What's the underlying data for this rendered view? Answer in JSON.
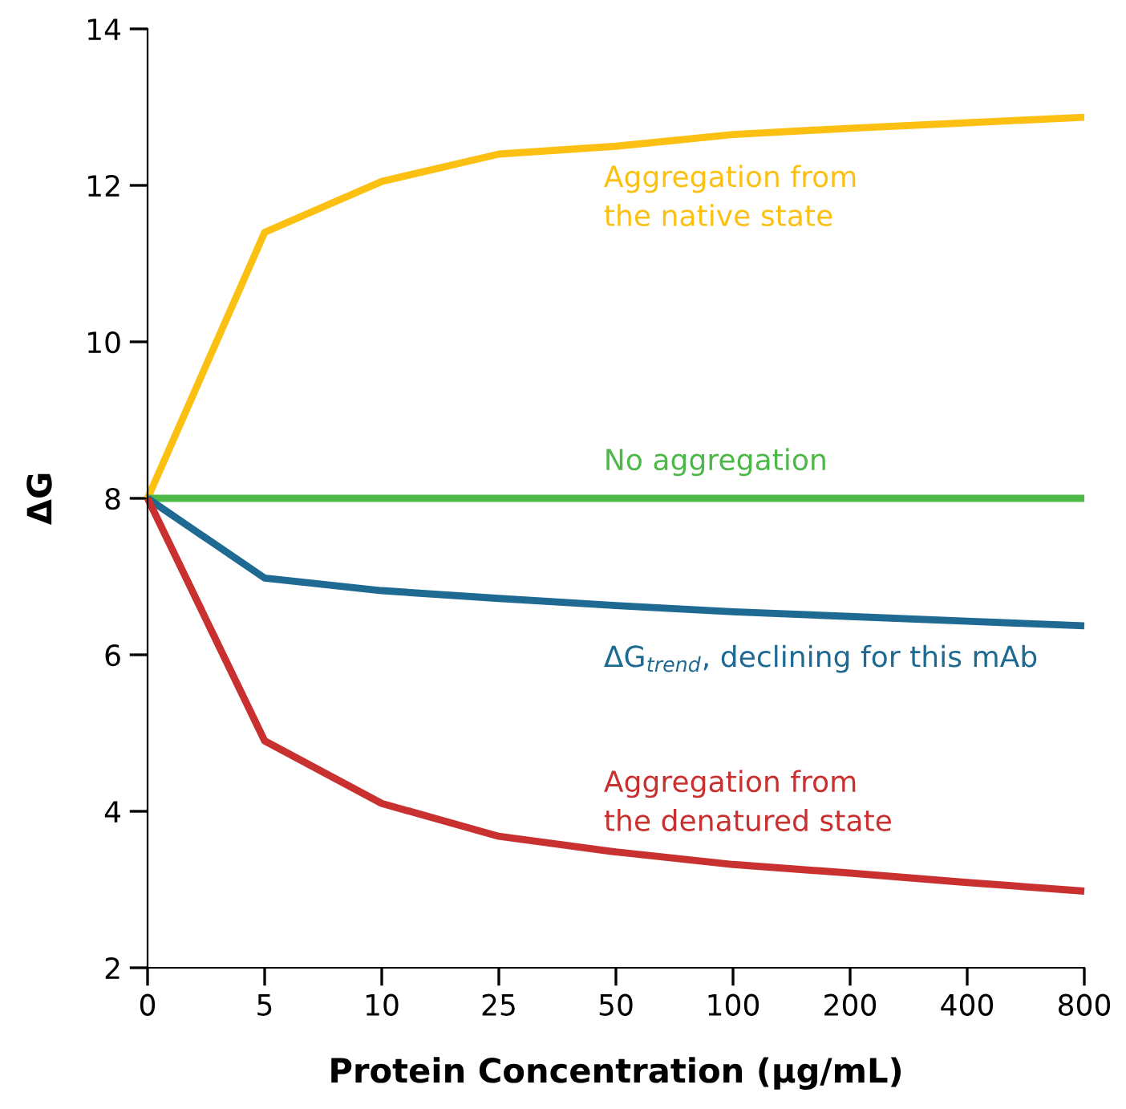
{
  "chart_data": {
    "type": "line",
    "xlabel": "Protein Concentration (µg/mL)",
    "ylabel": "ΔG",
    "categories": [
      "0",
      "5",
      "10",
      "25",
      "50",
      "100",
      "200",
      "400",
      "800"
    ],
    "ylim": [
      2,
      14
    ],
    "yticks": [
      2,
      4,
      6,
      8,
      10,
      12,
      14
    ],
    "grid": false,
    "legend": false,
    "line_style": "solid",
    "marker": "none",
    "series": [
      {
        "name": "Aggregation from\nthe native state",
        "color": "#fcc013",
        "values": [
          8,
          11.4,
          12.05,
          12.4,
          12.5,
          12.65,
          12.73,
          12.8,
          12.87
        ]
      },
      {
        "name": "No aggregation",
        "color": "#4db848",
        "values": [
          8,
          8,
          8,
          8,
          8,
          8,
          8,
          8,
          8
        ]
      },
      {
        "name": "ΔG$_{trend}$, declining for this mAb",
        "color": "#1f6a92",
        "values": [
          8,
          6.98,
          6.82,
          6.72,
          6.63,
          6.55,
          6.49,
          6.43,
          6.37
        ]
      },
      {
        "name": "Aggregation from\nthe denatured state",
        "color": "#c8312f",
        "values": [
          8,
          4.9,
          4.1,
          3.68,
          3.48,
          3.32,
          3.21,
          3.09,
          2.98
        ]
      }
    ]
  }
}
